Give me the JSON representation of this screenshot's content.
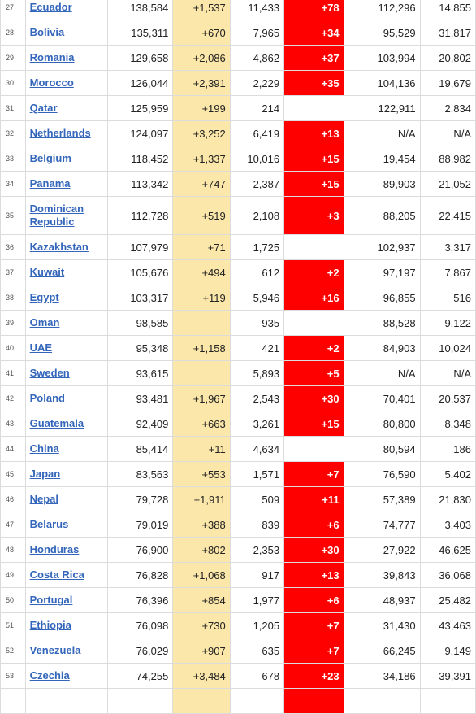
{
  "rows": [
    {
      "rank": "27",
      "country": "Ecuador",
      "total_cases": "138,584",
      "new_cases": "+1,537",
      "total_deaths": "11,433",
      "new_deaths": "+78",
      "total_recovered": "112,296",
      "active": "14,855"
    },
    {
      "rank": "28",
      "country": "Bolivia",
      "total_cases": "135,311",
      "new_cases": "+670",
      "total_deaths": "7,965",
      "new_deaths": "+34",
      "total_recovered": "95,529",
      "active": "31,817"
    },
    {
      "rank": "29",
      "country": "Romania",
      "total_cases": "129,658",
      "new_cases": "+2,086",
      "total_deaths": "4,862",
      "new_deaths": "+37",
      "total_recovered": "103,994",
      "active": "20,802"
    },
    {
      "rank": "30",
      "country": "Morocco",
      "total_cases": "126,044",
      "new_cases": "+2,391",
      "total_deaths": "2,229",
      "new_deaths": "+35",
      "total_recovered": "104,136",
      "active": "19,679"
    },
    {
      "rank": "31",
      "country": "Qatar",
      "total_cases": "125,959",
      "new_cases": "+199",
      "total_deaths": "214",
      "new_deaths": "",
      "total_recovered": "122,911",
      "active": "2,834"
    },
    {
      "rank": "32",
      "country": "Netherlands",
      "total_cases": "124,097",
      "new_cases": "+3,252",
      "total_deaths": "6,419",
      "new_deaths": "+13",
      "total_recovered": "N/A",
      "active": "N/A"
    },
    {
      "rank": "33",
      "country": "Belgium",
      "total_cases": "118,452",
      "new_cases": "+1,337",
      "total_deaths": "10,016",
      "new_deaths": "+15",
      "total_recovered": "19,454",
      "active": "88,982"
    },
    {
      "rank": "34",
      "country": "Panama",
      "total_cases": "113,342",
      "new_cases": "+747",
      "total_deaths": "2,387",
      "new_deaths": "+15",
      "total_recovered": "89,903",
      "active": "21,052"
    },
    {
      "rank": "35",
      "country": "Dominican Republic",
      "total_cases": "112,728",
      "new_cases": "+519",
      "total_deaths": "2,108",
      "new_deaths": "+3",
      "total_recovered": "88,205",
      "active": "22,415",
      "tall": true
    },
    {
      "rank": "36",
      "country": "Kazakhstan",
      "total_cases": "107,979",
      "new_cases": "+71",
      "total_deaths": "1,725",
      "new_deaths": "",
      "total_recovered": "102,937",
      "active": "3,317"
    },
    {
      "rank": "37",
      "country": "Kuwait",
      "total_cases": "105,676",
      "new_cases": "+494",
      "total_deaths": "612",
      "new_deaths": "+2",
      "total_recovered": "97,197",
      "active": "7,867"
    },
    {
      "rank": "38",
      "country": "Egypt",
      "total_cases": "103,317",
      "new_cases": "+119",
      "total_deaths": "5,946",
      "new_deaths": "+16",
      "total_recovered": "96,855",
      "active": "516"
    },
    {
      "rank": "39",
      "country": "Oman",
      "total_cases": "98,585",
      "new_cases": "",
      "total_deaths": "935",
      "new_deaths": "",
      "total_recovered": "88,528",
      "active": "9,122"
    },
    {
      "rank": "40",
      "country": "UAE",
      "total_cases": "95,348",
      "new_cases": "+1,158",
      "total_deaths": "421",
      "new_deaths": "+2",
      "total_recovered": "84,903",
      "active": "10,024"
    },
    {
      "rank": "41",
      "country": "Sweden",
      "total_cases": "93,615",
      "new_cases": "",
      "total_deaths": "5,893",
      "new_deaths": "+5",
      "total_recovered": "N/A",
      "active": "N/A"
    },
    {
      "rank": "42",
      "country": "Poland",
      "total_cases": "93,481",
      "new_cases": "+1,967",
      "total_deaths": "2,543",
      "new_deaths": "+30",
      "total_recovered": "70,401",
      "active": "20,537"
    },
    {
      "rank": "43",
      "country": "Guatemala",
      "total_cases": "92,409",
      "new_cases": "+663",
      "total_deaths": "3,261",
      "new_deaths": "+15",
      "total_recovered": "80,800",
      "active": "8,348"
    },
    {
      "rank": "44",
      "country": "China",
      "total_cases": "85,414",
      "new_cases": "+11",
      "total_deaths": "4,634",
      "new_deaths": "",
      "total_recovered": "80,594",
      "active": "186"
    },
    {
      "rank": "45",
      "country": "Japan",
      "total_cases": "83,563",
      "new_cases": "+553",
      "total_deaths": "1,571",
      "new_deaths": "+7",
      "total_recovered": "76,590",
      "active": "5,402"
    },
    {
      "rank": "46",
      "country": "Nepal",
      "total_cases": "79,728",
      "new_cases": "+1,911",
      "total_deaths": "509",
      "new_deaths": "+11",
      "total_recovered": "57,389",
      "active": "21,830"
    },
    {
      "rank": "47",
      "country": "Belarus",
      "total_cases": "79,019",
      "new_cases": "+388",
      "total_deaths": "839",
      "new_deaths": "+6",
      "total_recovered": "74,777",
      "active": "3,403"
    },
    {
      "rank": "48",
      "country": "Honduras",
      "total_cases": "76,900",
      "new_cases": "+802",
      "total_deaths": "2,353",
      "new_deaths": "+30",
      "total_recovered": "27,922",
      "active": "46,625"
    },
    {
      "rank": "49",
      "country": "Costa Rica",
      "total_cases": "76,828",
      "new_cases": "+1,068",
      "total_deaths": "917",
      "new_deaths": "+13",
      "total_recovered": "39,843",
      "active": "36,068"
    },
    {
      "rank": "50",
      "country": "Portugal",
      "total_cases": "76,396",
      "new_cases": "+854",
      "total_deaths": "1,977",
      "new_deaths": "+6",
      "total_recovered": "48,937",
      "active": "25,482"
    },
    {
      "rank": "51",
      "country": "Ethiopia",
      "total_cases": "76,098",
      "new_cases": "+730",
      "total_deaths": "1,205",
      "new_deaths": "+7",
      "total_recovered": "31,430",
      "active": "43,463"
    },
    {
      "rank": "52",
      "country": "Venezuela",
      "total_cases": "76,029",
      "new_cases": "+907",
      "total_deaths": "635",
      "new_deaths": "+7",
      "total_recovered": "66,245",
      "active": "9,149"
    },
    {
      "rank": "53",
      "country": "Czechia",
      "total_cases": "74,255",
      "new_cases": "+3,484",
      "total_deaths": "678",
      "new_deaths": "+23",
      "total_recovered": "34,186",
      "active": "39,391"
    },
    {
      "rank": "",
      "country": "",
      "total_cases": "",
      "new_cases": "",
      "total_deaths": "",
      "new_deaths": "",
      "total_recovered": "",
      "active": "",
      "partial": true
    }
  ],
  "colors": {
    "new_cases_bg": "#fbe7a9",
    "new_deaths_bg": "#ff0000",
    "link": "#3366bb"
  }
}
